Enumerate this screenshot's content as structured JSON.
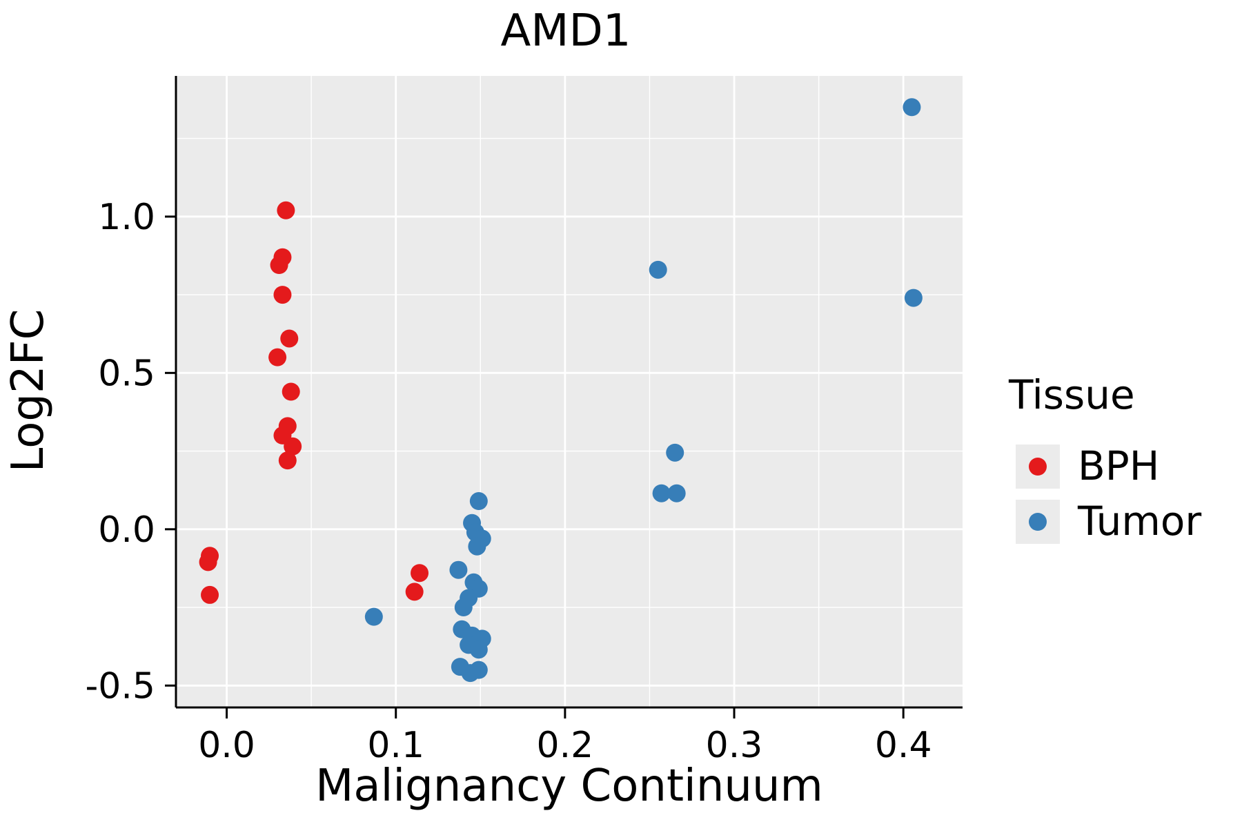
{
  "chart_data": {
    "type": "scatter",
    "title": "AMD1",
    "xlabel": "Malignancy Continuum",
    "ylabel": "Log2FC",
    "xlim": [
      -0.03,
      0.435
    ],
    "ylim": [
      -0.57,
      1.45
    ],
    "x_ticks": [
      0.0,
      0.1,
      0.2,
      0.3,
      0.4
    ],
    "x_tick_labels": [
      "0.0",
      "0.1",
      "0.2",
      "0.3",
      "0.4"
    ],
    "y_ticks": [
      -0.5,
      0.0,
      0.5,
      1.0
    ],
    "y_tick_labels": [
      "-0.5",
      "0.0",
      "0.5",
      "1.0"
    ],
    "x_minor_ticks": [
      0.05,
      0.15,
      0.25,
      0.35
    ],
    "y_minor_ticks": [
      -0.25,
      0.25,
      0.75,
      1.25
    ],
    "grid": true,
    "panel_background": "#EBEBEB",
    "grid_color": "#FFFFFF",
    "axis_color": "#000000",
    "legend": {
      "title": "Tissue",
      "position": "right",
      "key_background": "#EBEBEB",
      "entries": [
        {
          "label": "BPH",
          "color": "#E41A1C"
        },
        {
          "label": "Tumor",
          "color": "#377EB8"
        }
      ]
    },
    "series": [
      {
        "name": "BPH",
        "color": "#E41A1C",
        "points": [
          [
            -0.01,
            -0.085
          ],
          [
            -0.011,
            -0.105
          ],
          [
            -0.01,
            -0.21
          ],
          [
            0.035,
            1.02
          ],
          [
            0.033,
            0.87
          ],
          [
            0.031,
            0.845
          ],
          [
            0.033,
            0.75
          ],
          [
            0.037,
            0.61
          ],
          [
            0.03,
            0.55
          ],
          [
            0.038,
            0.44
          ],
          [
            0.036,
            0.33
          ],
          [
            0.033,
            0.3
          ],
          [
            0.039,
            0.265
          ],
          [
            0.036,
            0.22
          ],
          [
            0.114,
            -0.14
          ],
          [
            0.111,
            -0.2
          ]
        ]
      },
      {
        "name": "Tumor",
        "color": "#377EB8",
        "points": [
          [
            0.087,
            -0.28
          ],
          [
            0.149,
            0.09
          ],
          [
            0.145,
            0.02
          ],
          [
            0.147,
            -0.01
          ],
          [
            0.151,
            -0.03
          ],
          [
            0.148,
            -0.055
          ],
          [
            0.137,
            -0.13
          ],
          [
            0.146,
            -0.17
          ],
          [
            0.149,
            -0.19
          ],
          [
            0.143,
            -0.22
          ],
          [
            0.14,
            -0.25
          ],
          [
            0.139,
            -0.32
          ],
          [
            0.145,
            -0.34
          ],
          [
            0.151,
            -0.35
          ],
          [
            0.143,
            -0.37
          ],
          [
            0.149,
            -0.385
          ],
          [
            0.138,
            -0.44
          ],
          [
            0.144,
            -0.46
          ],
          [
            0.149,
            -0.45
          ],
          [
            0.255,
            0.83
          ],
          [
            0.257,
            0.115
          ],
          [
            0.266,
            0.115
          ],
          [
            0.265,
            0.245
          ],
          [
            0.405,
            1.35
          ],
          [
            0.406,
            0.74
          ]
        ]
      }
    ]
  }
}
